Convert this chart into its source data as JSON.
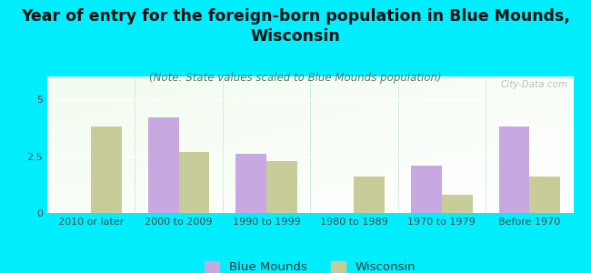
{
  "title": "Year of entry for the foreign-born population in Blue Mounds,\nWisconsin",
  "subtitle": "(Note: State values scaled to Blue Mounds population)",
  "categories": [
    "2010 or later",
    "2000 to 2009",
    "1990 to 1999",
    "1980 to 1989",
    "1970 to 1979",
    "Before 1970"
  ],
  "blue_mounds": [
    0,
    4.2,
    2.6,
    0,
    2.1,
    3.8
  ],
  "wisconsin": [
    3.8,
    2.7,
    2.3,
    1.6,
    0.8,
    1.6
  ],
  "blue_mounds_color": "#c8a8e0",
  "wisconsin_color": "#c8cc99",
  "background_outer": "#00eeff",
  "ylim": [
    0,
    6
  ],
  "yticks": [
    0,
    2.5,
    5
  ],
  "bar_width": 0.35,
  "title_fontsize": 12.5,
  "subtitle_fontsize": 8.5,
  "tick_fontsize": 8,
  "legend_fontsize": 9.5,
  "watermark": "City-Data.com"
}
